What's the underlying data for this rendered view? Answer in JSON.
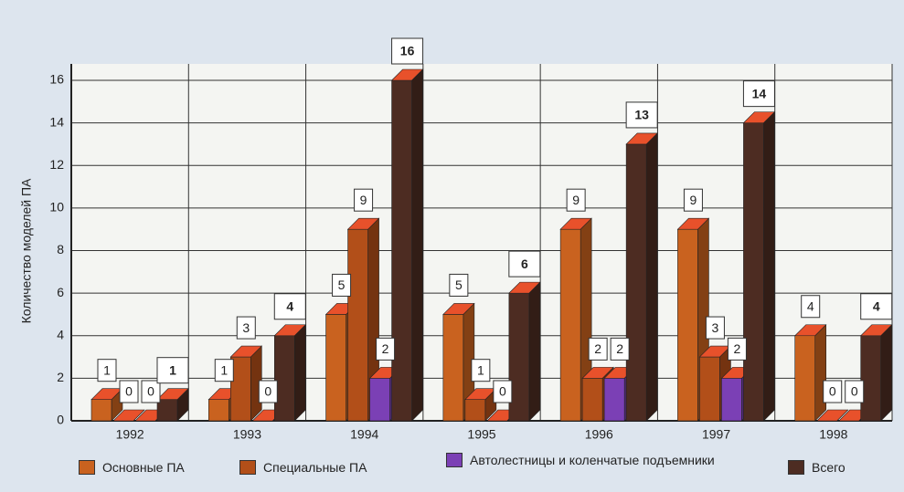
{
  "chart_data": {
    "type": "bar3d",
    "y_label": "Количество моделей ПА",
    "categories": [
      "1992",
      "1993",
      "1994",
      "1995",
      "1996",
      "1997",
      "1998"
    ],
    "series": [
      {
        "name": "Основные ПА",
        "color": "#c9621f",
        "values": [
          1,
          1,
          5,
          5,
          9,
          9,
          4
        ]
      },
      {
        "name": "Специальные ПА",
        "color": "#b24f19",
        "values": [
          0,
          3,
          9,
          1,
          2,
          3,
          0
        ]
      },
      {
        "name": "Автолестницы и коленчатые подъемники",
        "color": "#7b40b5",
        "values": [
          0,
          0,
          2,
          0,
          2,
          2,
          0
        ]
      },
      {
        "name": "Всего",
        "color": "#4d2c22",
        "values": [
          1,
          4,
          16,
          6,
          13,
          14,
          4
        ]
      }
    ],
    "ylim": [
      0,
      16
    ],
    "yticks": [
      0,
      2,
      4,
      6,
      8,
      10,
      12,
      14,
      16
    ],
    "grid": true
  }
}
